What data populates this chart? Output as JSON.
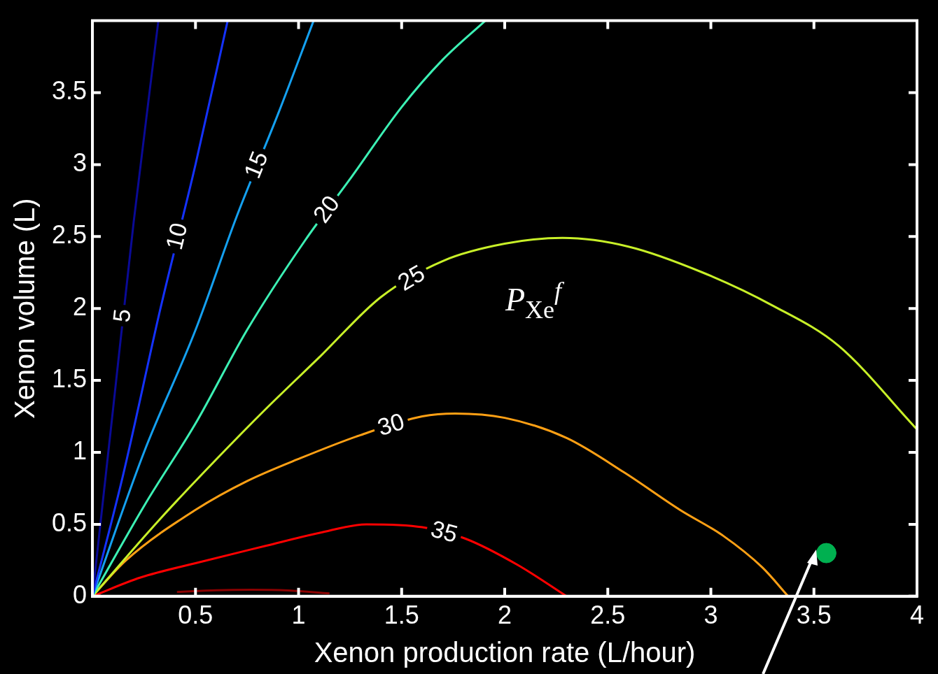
{
  "chart_data": {
    "type": "line",
    "xlabel": "Xenon production rate (L/hour)",
    "ylabel": "Xenon volume (L)",
    "annotations": [
      "P$_{Xe}$$^{f}$"
    ],
    "xlim": [
      0,
      4
    ],
    "ylim": [
      0,
      4
    ],
    "xticks": [
      0.5,
      1,
      1.5,
      2,
      2.5,
      3,
      3.5,
      4
    ],
    "yticks": [
      0,
      0.5,
      1,
      1.5,
      2,
      2.5,
      3,
      3.5
    ],
    "grid": false,
    "legend": false,
    "marker": "none",
    "line_style": "solid",
    "series": [
      {
        "name": "5",
        "color": "#0a0a96",
        "x": [
          0,
          0.1,
          0.2,
          0.32
        ],
        "values": [
          0,
          1.3,
          2.6,
          4
        ]
      },
      {
        "name": "10",
        "color": "#1432ff",
        "x": [
          0,
          0.15,
          0.33,
          0.5,
          0.656
        ],
        "values": [
          0,
          0.85,
          2,
          3.0,
          4
        ]
      },
      {
        "name": "15",
        "color": "#14a0f0",
        "x": [
          0,
          0.25,
          0.5,
          0.7,
          0.9,
          1.073
        ],
        "values": [
          0,
          1.0,
          1.85,
          2.64,
          3.35,
          4
        ]
      },
      {
        "name": "20",
        "color": "#3cf0b4",
        "x": [
          0,
          0.26,
          0.5,
          0.75,
          1.03,
          1.25,
          1.5,
          1.7,
          1.906
        ],
        "values": [
          0,
          0.65,
          1.2,
          1.85,
          2.47,
          2.9,
          3.4,
          3.73,
          4
        ]
      },
      {
        "name": "25",
        "color": "#c8f028",
        "x": [
          0,
          0.33,
          0.6,
          0.84,
          1.1,
          1.4,
          1.7,
          2.0,
          2.28,
          2.6,
          2.96,
          3.3,
          3.62,
          4
        ],
        "values": [
          0,
          0.54,
          0.95,
          1.3,
          1.66,
          2.08,
          2.33,
          2.45,
          2.49,
          2.43,
          2.25,
          2.02,
          1.74,
          1.16
        ]
      },
      {
        "name": "30",
        "color": "#ffa014",
        "x": [
          0,
          0.163,
          0.5,
          0.75,
          1.01,
          1.3,
          1.6,
          1.76,
          2.0,
          2.3,
          2.58,
          2.85,
          3.06,
          3.25,
          3.375
        ],
        "values": [
          0,
          0.25,
          0.6,
          0.8,
          0.96,
          1.12,
          1.25,
          1.27,
          1.24,
          1.1,
          0.86,
          0.6,
          0.42,
          0.2,
          0
        ]
      },
      {
        "name": "35",
        "color": "#ff0000",
        "x": [
          0,
          0.233,
          0.5,
          0.84,
          1.1,
          1.33,
          1.6,
          1.81,
          2.06,
          2.3
        ],
        "values": [
          0,
          0.13,
          0.23,
          0.35,
          0.44,
          0.5,
          0.48,
          0.4,
          0.22,
          0
        ]
      },
      {
        "color": "#8c0000",
        "x": [
          0.41,
          0.6,
          0.77,
          0.95,
          1.15
        ],
        "values": [
          0.03,
          0.042,
          0.045,
          0.04,
          0.02
        ]
      },
      {
        "type": "scatter",
        "color": "#00b050",
        "marker": "circle",
        "x": [
          3.56
        ],
        "values": [
          0.3
        ]
      }
    ]
  }
}
